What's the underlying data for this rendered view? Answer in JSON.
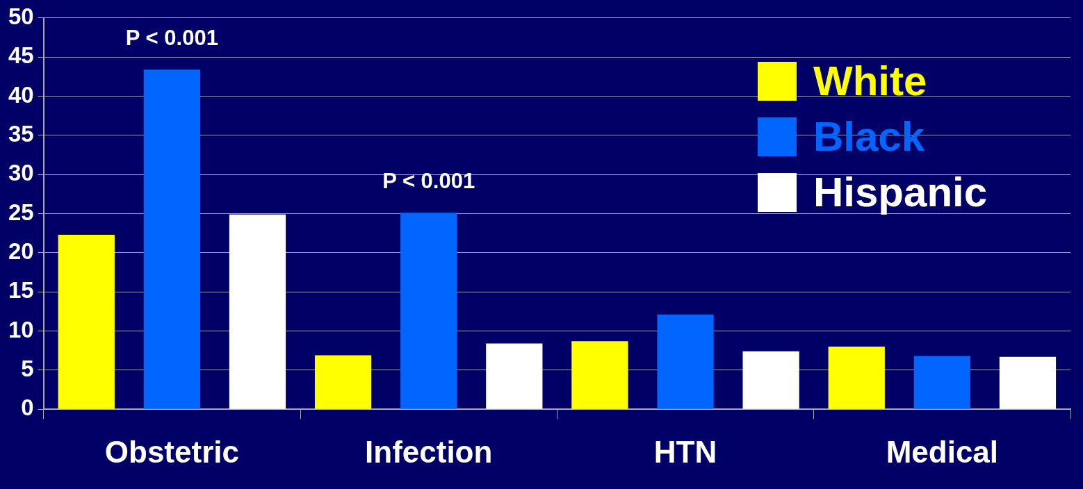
{
  "chart_data": {
    "type": "bar",
    "categories": [
      "Obstetric",
      "Infection",
      "HTN",
      "Medical"
    ],
    "series": [
      {
        "name": "White",
        "color": "#ffff00",
        "values": [
          22.3,
          6.9,
          8.7,
          8.0
        ]
      },
      {
        "name": "Black",
        "color": "#0066ff",
        "values": [
          43.4,
          25.1,
          12.1,
          6.8
        ]
      },
      {
        "name": "Hispanic",
        "color": "#ffffff",
        "values": [
          24.9,
          8.4,
          7.4,
          6.7
        ]
      }
    ],
    "ylim": [
      0,
      50
    ],
    "yticks": [
      0,
      5,
      10,
      15,
      20,
      25,
      30,
      35,
      40,
      45,
      50
    ],
    "grid": "y",
    "legend": "top right",
    "annotations": [
      "P < 0.001",
      "P < 0.001"
    ]
  }
}
